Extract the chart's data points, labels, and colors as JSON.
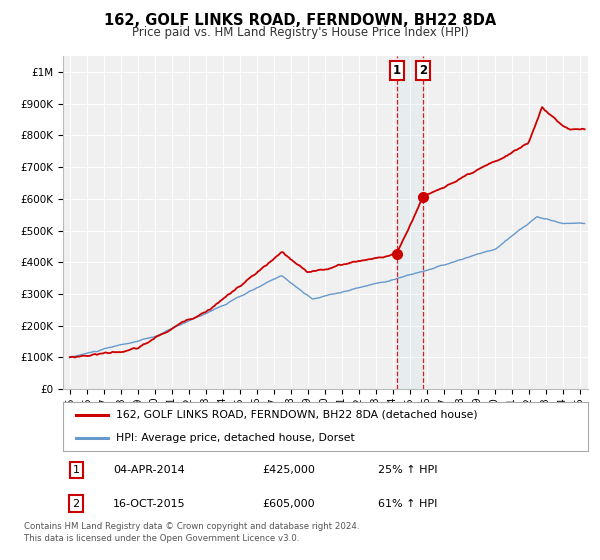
{
  "title": "162, GOLF LINKS ROAD, FERNDOWN, BH22 8DA",
  "subtitle": "Price paid vs. HM Land Registry's House Price Index (HPI)",
  "legend_label_red": "162, GOLF LINKS ROAD, FERNDOWN, BH22 8DA (detached house)",
  "legend_label_blue": "HPI: Average price, detached house, Dorset",
  "annotation1_label": "1",
  "annotation1_date": "04-APR-2014",
  "annotation1_price": "£425,000",
  "annotation1_hpi": "25% ↑ HPI",
  "annotation2_label": "2",
  "annotation2_date": "16-OCT-2015",
  "annotation2_price": "£605,000",
  "annotation2_hpi": "61% ↑ HPI",
  "footer": "Contains HM Land Registry data © Crown copyright and database right 2024.\nThis data is licensed under the Open Government Licence v3.0.",
  "red_color": "#cc0000",
  "blue_color": "#6699cc",
  "marker1_x": 2014.25,
  "marker1_y": 425000,
  "marker2_x": 2015.79,
  "marker2_y": 605000,
  "vline1_x": 2014.25,
  "vline2_x": 2015.79,
  "ylabel_ticks": [
    "£0",
    "£100K",
    "£200K",
    "£300K",
    "£400K",
    "£500K",
    "£600K",
    "£700K",
    "£800K",
    "£900K",
    "£1M"
  ],
  "ytick_values": [
    0,
    100000,
    200000,
    300000,
    400000,
    500000,
    600000,
    700000,
    800000,
    900000,
    1000000
  ],
  "ylim": [
    0,
    1050000
  ],
  "xlim_start": 1994.6,
  "xlim_end": 2025.5,
  "xtick_years": [
    1995,
    1996,
    1997,
    1998,
    1999,
    2000,
    2001,
    2002,
    2003,
    2004,
    2005,
    2006,
    2007,
    2008,
    2009,
    2010,
    2011,
    2012,
    2013,
    2014,
    2015,
    2016,
    2017,
    2018,
    2019,
    2020,
    2021,
    2022,
    2023,
    2024,
    2025
  ],
  "bg_color": "#f0f0f0",
  "grid_color": "#ffffff"
}
